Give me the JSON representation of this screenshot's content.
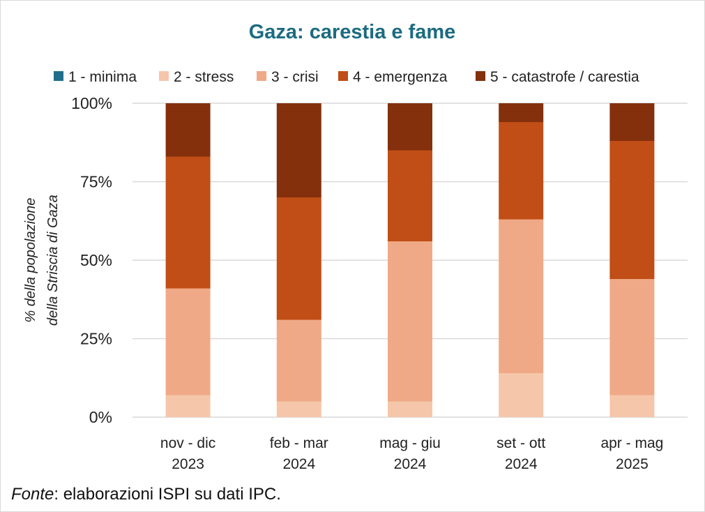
{
  "chart_data": {
    "type": "bar",
    "stacked": true,
    "title": "Gaza: carestia e fame",
    "ylabel_lines": [
      "% della popolazione",
      "della Striscia di Gaza"
    ],
    "ylim": [
      0,
      100
    ],
    "yticks": [
      0,
      25,
      50,
      75,
      100
    ],
    "ytick_labels": [
      "0%",
      "25%",
      "50%",
      "75%",
      "100%"
    ],
    "grid": true,
    "legend_position": "top",
    "categories": [
      [
        "nov - dic",
        "2023"
      ],
      [
        "feb - mar",
        "2024"
      ],
      [
        "mag - giu",
        "2024"
      ],
      [
        "set - ott",
        "2024"
      ],
      [
        "apr - mag",
        "2025"
      ]
    ],
    "series": [
      {
        "name": "1 - minima",
        "color": "#1f6e8c",
        "values": [
          0,
          0,
          0,
          0,
          0
        ]
      },
      {
        "name": "2 - stress",
        "color": "#f5c6aa",
        "values": [
          7,
          5,
          5,
          14,
          7
        ]
      },
      {
        "name": "3 - crisi",
        "color": "#f0a986",
        "values": [
          34,
          26,
          51,
          49,
          37
        ]
      },
      {
        "name": "4 - emergenza",
        "color": "#c04e16",
        "values": [
          42,
          39,
          29,
          31,
          44
        ]
      },
      {
        "name": "5 - catastrofe / carestia",
        "color": "#84300d",
        "values": [
          17,
          30,
          15,
          6,
          12
        ]
      }
    ]
  },
  "source": {
    "label": "Fonte",
    "text": ": elaborazioni ISPI su dati IPC."
  },
  "colors": {
    "title": "#1b6b80",
    "grid": "#d9d9d9",
    "text": "#222222"
  }
}
